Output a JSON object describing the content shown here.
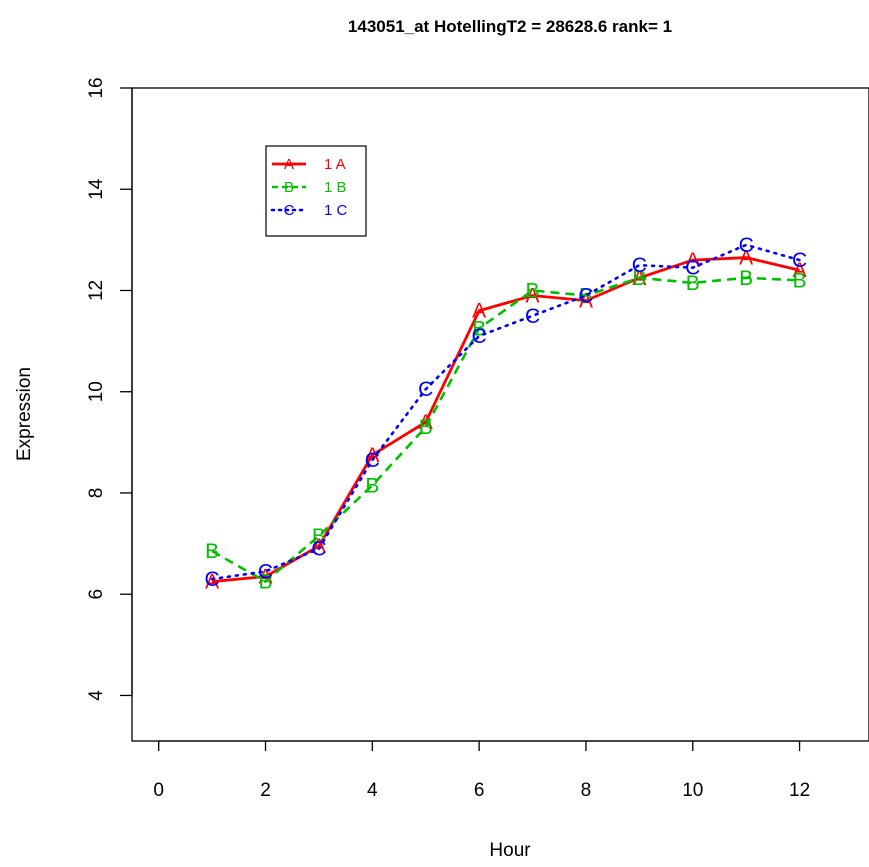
{
  "chart_data": {
    "type": "line",
    "title": "143051_at  HotellingT2 = 28628.6  rank= 1",
    "xlabel": "Hour",
    "ylabel": "Expression",
    "xlim": [
      -0.5,
      13.3
    ],
    "ylim": [
      3.1,
      16.0
    ],
    "xticks": [
      "0",
      "2",
      "4",
      "6",
      "8",
      "10",
      "12"
    ],
    "xtick_values": [
      0,
      2,
      4,
      6,
      8,
      10,
      12
    ],
    "yticks": [
      "4",
      "6",
      "8",
      "10",
      "12",
      "14",
      "16"
    ],
    "ytick_values": [
      4,
      6,
      8,
      10,
      12,
      14,
      16
    ],
    "grid": false,
    "legend_position": "top-left",
    "x": [
      1,
      2,
      3,
      4,
      5,
      6,
      7,
      8,
      9,
      10,
      11,
      12
    ],
    "series": [
      {
        "name": "1 A",
        "marker": "A",
        "color": "#ff0000",
        "line_style": "solid",
        "values": [
          6.25,
          6.35,
          6.95,
          8.75,
          9.4,
          11.6,
          11.9,
          11.8,
          12.25,
          12.6,
          12.65,
          12.4
        ]
      },
      {
        "name": "1 B",
        "marker": "B",
        "color": "#00c000",
        "line_style": "dashed",
        "values": [
          6.85,
          6.25,
          7.15,
          8.15,
          9.3,
          11.25,
          12.0,
          11.9,
          12.25,
          12.15,
          12.25,
          12.2
        ]
      },
      {
        "name": "1 C",
        "marker": "C",
        "color": "#0000ff",
        "line_style": "dotted",
        "values": [
          6.3,
          6.45,
          6.9,
          8.65,
          10.05,
          11.1,
          11.5,
          11.9,
          12.5,
          12.45,
          12.9,
          12.6
        ]
      }
    ]
  }
}
